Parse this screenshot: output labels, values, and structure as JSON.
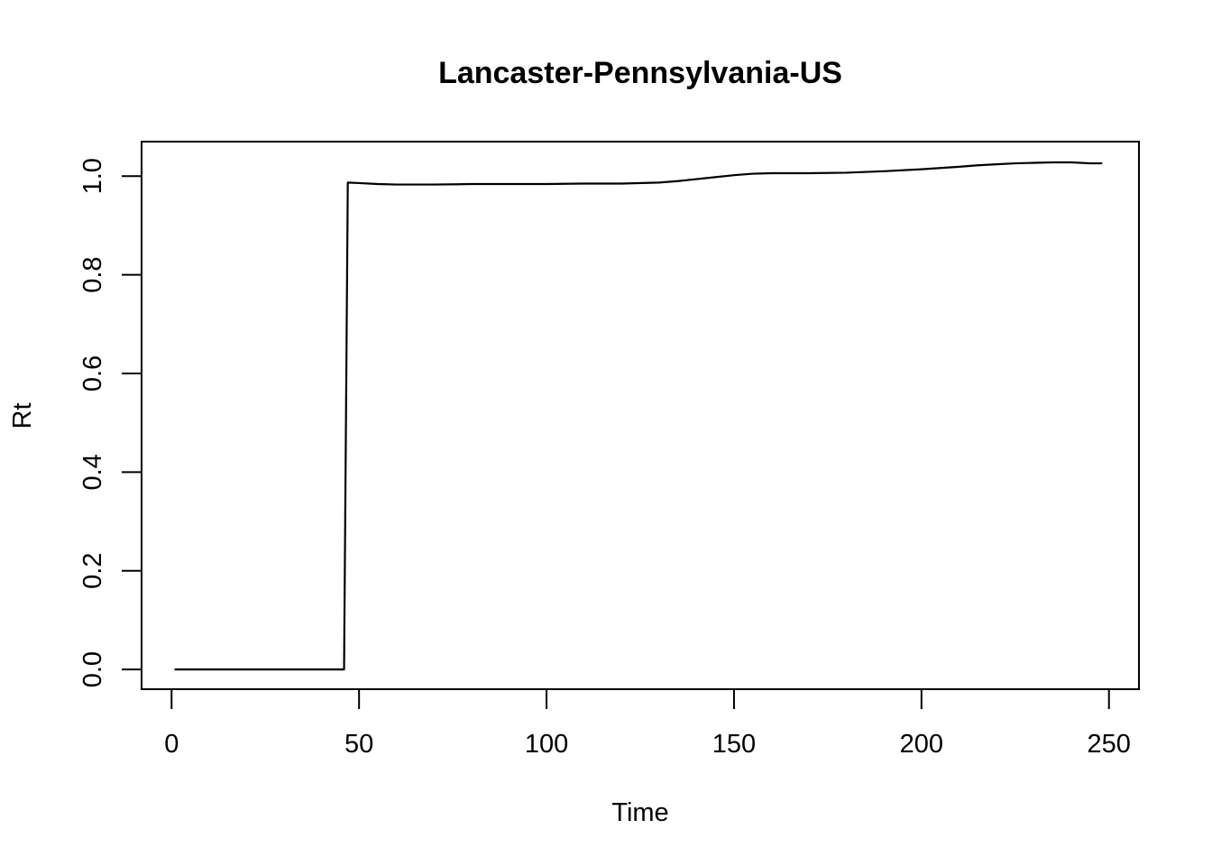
{
  "chart_data": {
    "type": "line",
    "title": "Lancaster-Pennsylvania-US",
    "xlabel": "Time",
    "ylabel": "Rt",
    "xlim": [
      -8,
      258
    ],
    "ylim": [
      -0.04,
      1.07
    ],
    "xticks": [
      0,
      50,
      100,
      150,
      200,
      250
    ],
    "yticks": [
      0.0,
      0.2,
      0.4,
      0.6,
      0.8,
      1.0
    ],
    "xtick_labels": [
      "0",
      "50",
      "100",
      "150",
      "200",
      "250"
    ],
    "ytick_labels": [
      "0.0",
      "0.2",
      "0.4",
      "0.6",
      "0.8",
      "1.0"
    ],
    "grid": false,
    "colors": {
      "line": "#000000",
      "axes": "#000000",
      "background": "#ffffff"
    },
    "series": [
      {
        "x": [
          1,
          10,
          20,
          30,
          40,
          46,
          47,
          50,
          55,
          60,
          70,
          80,
          90,
          100,
          110,
          120,
          130,
          135,
          140,
          145,
          150,
          155,
          160,
          170,
          180,
          190,
          200,
          210,
          215,
          220,
          225,
          230,
          235,
          240,
          245,
          248
        ],
        "y": [
          0,
          0,
          0,
          0,
          0,
          0,
          0.987,
          0.986,
          0.984,
          0.983,
          0.983,
          0.984,
          0.984,
          0.984,
          0.985,
          0.985,
          0.987,
          0.99,
          0.994,
          0.998,
          1.002,
          1.005,
          1.006,
          1.006,
          1.007,
          1.01,
          1.014,
          1.019,
          1.022,
          1.024,
          1.026,
          1.027,
          1.028,
          1.028,
          1.026,
          1.026
        ]
      }
    ]
  }
}
